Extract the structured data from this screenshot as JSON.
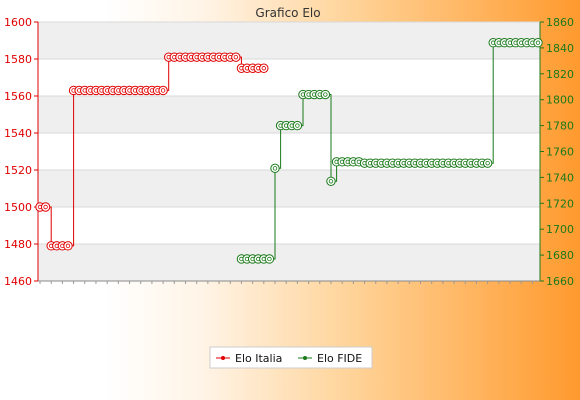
{
  "chart_data": {
    "type": "line",
    "title": "Grafico Elo",
    "y_left": {
      "lim": [
        1460,
        1600
      ],
      "ticks": [
        1460,
        1480,
        1500,
        1520,
        1540,
        1560,
        1580,
        1600
      ]
    },
    "y_right": {
      "lim": [
        1660,
        1860
      ],
      "ticks": [
        1660,
        1680,
        1700,
        1720,
        1740,
        1760,
        1780,
        1800,
        1820,
        1840,
        1860
      ]
    },
    "grid": true,
    "legend_position": "bottom",
    "colors": {
      "left_axis": "#e00000",
      "right_axis": "#1a7a1a"
    },
    "x_count": 90,
    "series": [
      {
        "name": "Elo Italia",
        "color": "#e00000",
        "axis": "left",
        "x_start": 0,
        "segments": [
          {
            "value": 1500,
            "count": 2
          },
          {
            "value": 1479,
            "count": 4
          },
          {
            "value": 1563,
            "count": 17
          },
          {
            "value": 1581,
            "count": 13
          },
          {
            "value": 1575,
            "count": 5
          }
        ]
      },
      {
        "name": "Elo FIDE",
        "color": "#1a7a1a",
        "axis": "right",
        "x_start": 36,
        "segments": [
          {
            "value": 1677,
            "count": 6
          },
          {
            "value": 1747,
            "count": 1
          },
          {
            "value": 1780,
            "count": 4
          },
          {
            "value": 1804,
            "count": 5
          },
          {
            "value": 1737,
            "count": 1
          },
          {
            "value": 1752,
            "count": 5
          },
          {
            "value": 1751,
            "count": 23
          },
          {
            "value": 1844,
            "count": 9
          }
        ]
      }
    ]
  }
}
